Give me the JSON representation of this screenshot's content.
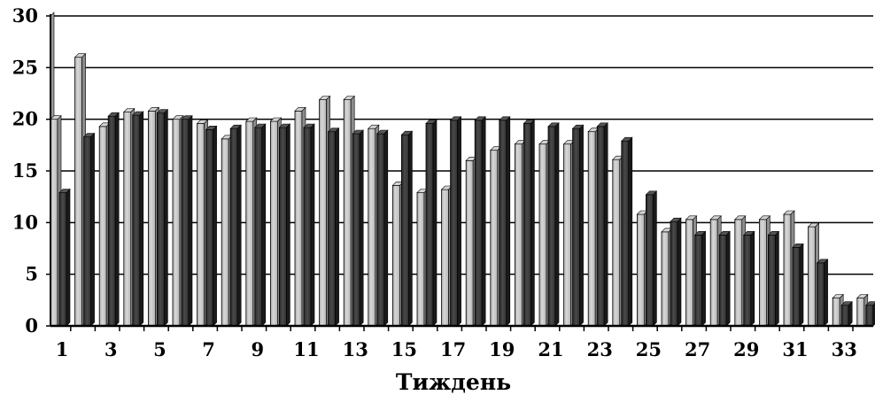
{
  "chart_data": {
    "type": "bar",
    "title": "",
    "xlabel": "Тиждень",
    "ylabel": "",
    "ylim": [
      0,
      30
    ],
    "yticks": [
      0,
      5,
      10,
      15,
      20,
      25,
      30
    ],
    "grid": true,
    "x_tick_labels": [
      "1",
      "3",
      "5",
      "7",
      "9",
      "11",
      "13",
      "15",
      "17",
      "19",
      "21",
      "23",
      "25",
      "27",
      "29",
      "31",
      "33"
    ],
    "categories": [
      "1",
      "2",
      "3",
      "4",
      "5",
      "6",
      "7",
      "8",
      "9",
      "10",
      "11",
      "12",
      "13",
      "14",
      "15",
      "16",
      "17",
      "18",
      "19",
      "20",
      "21",
      "22",
      "23",
      "24",
      "25",
      "26",
      "27",
      "28",
      "29",
      "30",
      "31",
      "32",
      "33",
      "34"
    ],
    "series": [
      {
        "color": "#bfbfbf",
        "values": [
          20,
          26,
          19.3,
          20.7,
          20.8,
          20,
          19.6,
          18.1,
          19.8,
          19.8,
          20.8,
          21.9,
          21.9,
          19.1,
          13.6,
          12.9,
          13.2,
          16,
          17,
          17.6,
          17.6,
          17.6,
          18.8,
          16.1,
          10.8,
          9.1,
          10.3,
          10.3,
          10.3,
          10.3,
          10.8,
          9.6,
          2.7,
          2.7
        ]
      },
      {
        "color": "#3a3a3a",
        "values": [
          12.9,
          18.3,
          20.3,
          20.4,
          20.6,
          20,
          19,
          19.1,
          19.2,
          19.2,
          19.2,
          18.8,
          18.6,
          18.6,
          18.5,
          19.6,
          19.9,
          19.9,
          19.9,
          19.6,
          19.3,
          19.1,
          19.3,
          17.9,
          12.7,
          10.1,
          8.8,
          8.8,
          8.8,
          8.8,
          7.6,
          6.1,
          2,
          2
        ]
      }
    ]
  }
}
